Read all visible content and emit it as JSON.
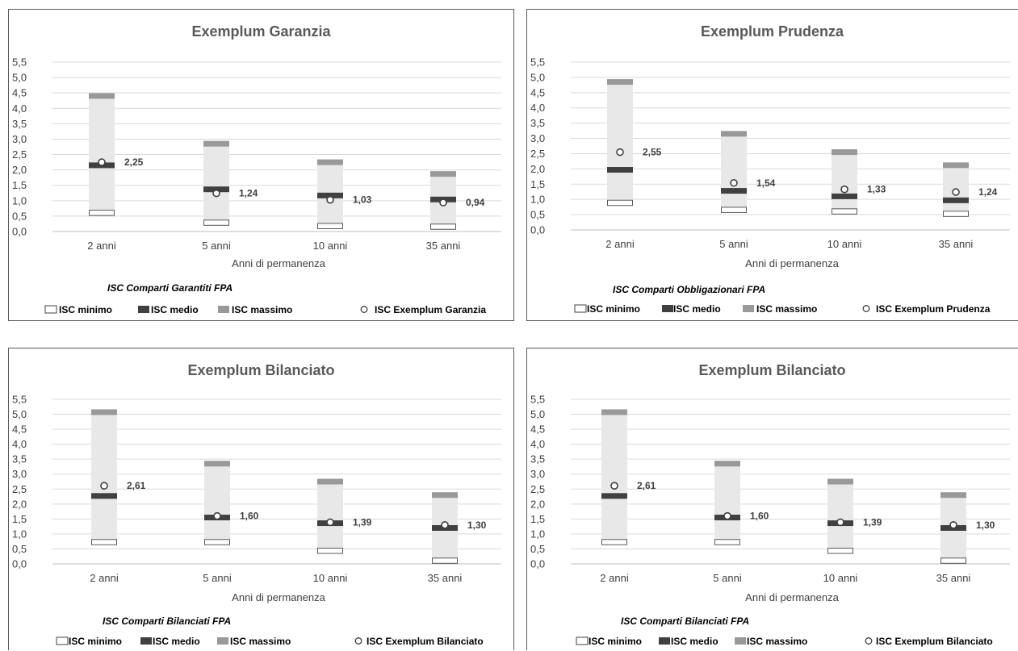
{
  "chart_data": [
    {
      "type": "bar",
      "title": "Exemplum Garanzia",
      "categories": [
        "2 anni",
        "5 anni",
        "10 anni",
        "35 anni"
      ],
      "xlabel": "Anni di permanenza",
      "ylabel": "",
      "ylim": [
        0,
        5.5
      ],
      "yticks": [
        "0,0",
        "0,5",
        "1,0",
        "1,5",
        "2,0",
        "2,5",
        "3,0",
        "3,5",
        "4,0",
        "4,5",
        "5,0",
        "5,5"
      ],
      "grid": true,
      "series": [
        {
          "name": "ISC minimo",
          "values": [
            0.6,
            0.28,
            0.17,
            0.15
          ]
        },
        {
          "name": "ISC medio",
          "values": [
            2.15,
            1.37,
            1.17,
            1.04
          ]
        },
        {
          "name": "ISC massimo",
          "values": [
            4.4,
            2.85,
            2.25,
            1.87
          ]
        },
        {
          "name": "ISC Exemplum Garanzia",
          "values": [
            2.25,
            1.24,
            1.03,
            0.94
          ]
        }
      ],
      "data_labels": [
        "2,25",
        "1,24",
        "1,03",
        "0,94"
      ],
      "subtitle": "ISC Comparti Garantiti FPA",
      "legend_position": "bottom"
    },
    {
      "type": "bar",
      "title": "Exemplum Prudenza",
      "categories": [
        "2 anni",
        "5 anni",
        "10 anni",
        "35 anni"
      ],
      "xlabel": "Anni di permanenza",
      "ylabel": "",
      "ylim": [
        0,
        5.5
      ],
      "yticks": [
        "0,0",
        "0,5",
        "1,0",
        "1,5",
        "2,0",
        "2,5",
        "3,0",
        "3,5",
        "4,0",
        "4,5",
        "5,0",
        "5,5"
      ],
      "grid": true,
      "series": [
        {
          "name": "ISC minimo",
          "values": [
            0.88,
            0.65,
            0.6,
            0.52
          ]
        },
        {
          "name": "ISC medio",
          "values": [
            1.97,
            1.28,
            1.1,
            0.97
          ]
        },
        {
          "name": "ISC massimo",
          "values": [
            4.85,
            3.15,
            2.55,
            2.12
          ]
        },
        {
          "name": "ISC Exemplum Prudenza",
          "values": [
            2.55,
            1.54,
            1.33,
            1.24
          ]
        }
      ],
      "data_labels": [
        "2,55",
        "1,54",
        "1,33",
        "1,24"
      ],
      "subtitle": "ISC Comparti Obbligazionari FPA",
      "legend_position": "bottom"
    },
    {
      "type": "bar",
      "title": "Exemplum Bilanciato",
      "categories": [
        "2 anni",
        "5 anni",
        "10 anni",
        "35 anni"
      ],
      "xlabel": "Anni di permanenza",
      "ylabel": "",
      "ylim": [
        0,
        5.5
      ],
      "yticks": [
        "0,0",
        "0,5",
        "1,0",
        "1,5",
        "2,0",
        "2,5",
        "3,0",
        "3,5",
        "4,0",
        "4,5",
        "5,0",
        "5,5"
      ],
      "grid": true,
      "series": [
        {
          "name": "ISC minimo",
          "values": [
            0.72,
            0.72,
            0.43,
            0.1
          ]
        },
        {
          "name": "ISC medio",
          "values": [
            2.27,
            1.55,
            1.36,
            1.2
          ]
        },
        {
          "name": "ISC massimo",
          "values": [
            5.07,
            3.35,
            2.75,
            2.3
          ]
        },
        {
          "name": "ISC Exemplum Bilanciato",
          "values": [
            2.61,
            1.6,
            1.39,
            1.3
          ]
        }
      ],
      "data_labels": [
        "2,61",
        "1,60",
        "1,39",
        "1,30"
      ],
      "subtitle": "ISC Comparti Bilanciati FPA",
      "legend_position": "bottom"
    },
    {
      "type": "bar",
      "title": "Exemplum Bilanciato",
      "categories": [
        "2 anni",
        "5 anni",
        "10 anni",
        "35 anni"
      ],
      "xlabel": "Anni di permanenza",
      "ylabel": "",
      "ylim": [
        0,
        5.5
      ],
      "yticks": [
        "0,0",
        "0,5",
        "1,0",
        "1,5",
        "2,0",
        "2,5",
        "3,0",
        "3,5",
        "4,0",
        "4,5",
        "5,0",
        "5,5"
      ],
      "grid": true,
      "series": [
        {
          "name": "ISC minimo",
          "values": [
            0.72,
            0.72,
            0.43,
            0.1
          ]
        },
        {
          "name": "ISC medio",
          "values": [
            2.27,
            1.55,
            1.36,
            1.2
          ]
        },
        {
          "name": "ISC massimo",
          "values": [
            5.07,
            3.35,
            2.75,
            2.3
          ]
        },
        {
          "name": "ISC Exemplum Bilanciato",
          "values": [
            2.61,
            1.6,
            1.39,
            1.3
          ]
        }
      ],
      "data_labels": [
        "2,61",
        "1,60",
        "1,39",
        "1,30"
      ],
      "subtitle": "ISC Comparti Bilanciati FPA",
      "legend_position": "bottom"
    }
  ],
  "colors": {
    "range_fill": "#e8e8e8",
    "minimo_border": "#595959",
    "medio": "#404040",
    "massimo": "#999999",
    "marker_fill": "#ffffff",
    "marker_stroke": "#404040",
    "gridline": "#d9d9d9",
    "text": "#595959"
  }
}
